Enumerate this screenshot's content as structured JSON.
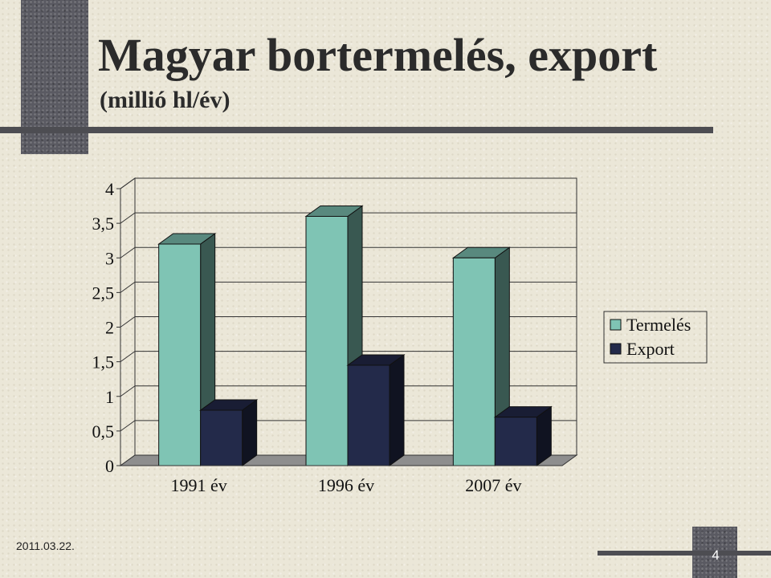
{
  "slide": {
    "title": "Magyar bortermelés, export",
    "subtitle": "(millió hl/év)",
    "date": "2011.03.22.",
    "page_number": "4"
  },
  "chart_data": {
    "type": "bar",
    "categories": [
      "1991 év",
      "1996 év",
      "2007 év"
    ],
    "series": [
      {
        "name": "Termelés",
        "values": [
          3.2,
          3.6,
          3.0
        ],
        "color": "#7fc4b4"
      },
      {
        "name": "Export",
        "values": [
          0.8,
          1.45,
          0.7
        ],
        "color": "#232a4a"
      }
    ],
    "ylim": [
      0,
      4
    ],
    "yticks": [
      "0",
      "0,5",
      "1",
      "1,5",
      "2",
      "2,5",
      "3",
      "3,5",
      "4"
    ],
    "grid": true,
    "legend": "right",
    "style": "3d-column"
  }
}
